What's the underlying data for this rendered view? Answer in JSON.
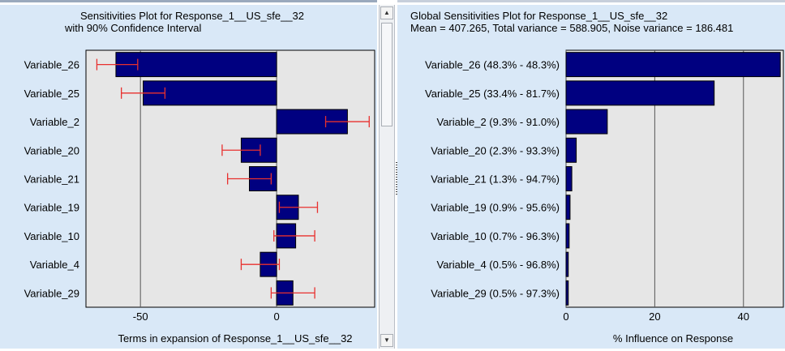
{
  "left": {
    "title_line1": "Sensitivities Plot for Response_1__US_sfe__32",
    "title_line2": "with 90% Confidence Interval",
    "xlabel": "Terms in expansion of Response_1__US_sfe__32"
  },
  "right": {
    "title_line1": "Global Sensitivities Plot for Response_1__US_sfe__32",
    "title_line2": "Mean = 407.265, Total variance = 588.905, Noise variance = 186.481",
    "xlabel": "% Influence on Response"
  },
  "colors": {
    "bar_fill": "#000080",
    "error_bar": "#e8302e",
    "plot_bg": "#e6e6e6",
    "panel_bg": "#d9e8f7"
  },
  "chart_data": [
    {
      "type": "bar",
      "orientation": "horizontal",
      "title": "Sensitivities Plot for Response_1__US_sfe__32 with 90% Confidence Interval",
      "xlabel": "Terms in expansion of Response_1__US_sfe__32",
      "categories": [
        "Variable_26",
        "Variable_25",
        "Variable_2",
        "Variable_20",
        "Variable_21",
        "Variable_19",
        "Variable_10",
        "Variable_4",
        "Variable_29"
      ],
      "values": [
        -59,
        -49,
        26,
        -13,
        -10,
        8,
        7,
        -6,
        6
      ],
      "ci_low": [
        -66,
        -57,
        18,
        -20,
        -18,
        1,
        -1,
        -13,
        -2
      ],
      "ci_high": [
        -51,
        -41,
        34,
        -6,
        -2,
        15,
        14,
        1,
        14
      ],
      "xlim": [
        -70,
        36
      ],
      "xticks": [
        -50,
        0
      ],
      "grid": true,
      "legend": "none"
    },
    {
      "type": "bar",
      "orientation": "horizontal",
      "title": "Global Sensitivities Plot for Response_1__US_sfe__32",
      "subtitle": "Mean = 407.265, Total variance = 588.905, Noise variance = 186.481",
      "xlabel": "% Influence on Response",
      "categories": [
        "Variable_26 (48.3% - 48.3%)",
        "Variable_25 (33.4% - 81.7%)",
        "Variable_2 (9.3% - 91.0%)",
        "Variable_20 (2.3% - 93.3%)",
        "Variable_21 (1.3% - 94.7%)",
        "Variable_19 (0.9% - 95.6%)",
        "Variable_10 (0.7% - 96.3%)",
        "Variable_4 (0.5% - 96.8%)",
        "Variable_29 (0.5% - 97.3%)"
      ],
      "values": [
        48.3,
        33.4,
        9.3,
        2.3,
        1.3,
        0.9,
        0.7,
        0.5,
        0.5
      ],
      "xlim": [
        0,
        49
      ],
      "xticks": [
        0,
        20,
        40
      ],
      "grid": true,
      "legend": "none"
    }
  ]
}
